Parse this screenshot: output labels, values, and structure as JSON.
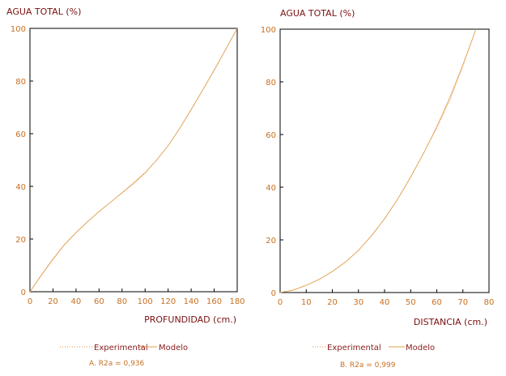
{
  "chart_data": [
    {
      "type": "line",
      "ylabel": "AGUA TOTAL (%)",
      "xlabel": "PROFUNDIDAD (cm.)",
      "xlim": [
        0,
        180
      ],
      "ylim": [
        0,
        100
      ],
      "xticks": [
        0,
        20,
        40,
        60,
        80,
        100,
        120,
        140,
        160,
        180
      ],
      "yticks": [
        0,
        20,
        40,
        60,
        80,
        100
      ],
      "series": [
        {
          "name": "Experimental",
          "x": [
            0,
            10,
            20,
            30,
            40,
            50,
            60,
            70,
            80,
            90,
            100,
            110,
            120,
            130,
            140,
            150,
            160,
            170,
            180
          ],
          "y": [
            0,
            6.5,
            12.5,
            18,
            22.5,
            26.5,
            30.5,
            34,
            37.5,
            41,
            45,
            50,
            55.5,
            62,
            69,
            76.5,
            84,
            92,
            100
          ]
        },
        {
          "name": "Modelo",
          "x": [
            0,
            10,
            20,
            30,
            40,
            50,
            60,
            70,
            80,
            90,
            100,
            110,
            120,
            130,
            140,
            150,
            160,
            170,
            180
          ],
          "y": [
            0,
            6.3,
            12.3,
            17.8,
            22.4,
            26.6,
            30.4,
            34,
            37.6,
            41.3,
            45.2,
            50,
            55.4,
            62,
            69.2,
            76.6,
            84.2,
            92,
            100
          ]
        }
      ],
      "legend": [
        "Experimental",
        "Modelo"
      ],
      "legend_position": "bottom",
      "caption": "A.   R2a = 0,936"
    },
    {
      "type": "line",
      "ylabel": "AGUA TOTAL (%)",
      "xlabel": "DISTANCIA (cm.)",
      "xlim": [
        0,
        80
      ],
      "ylim": [
        0,
        100
      ],
      "xticks": [
        0,
        10,
        20,
        30,
        40,
        50,
        60,
        70,
        80
      ],
      "yticks": [
        0,
        20,
        40,
        60,
        80,
        100
      ],
      "series": [
        {
          "name": "Experimental",
          "x": [
            0,
            5,
            10,
            15,
            20,
            25,
            30,
            35,
            40,
            45,
            50,
            55,
            60,
            65,
            70,
            75
          ],
          "y": [
            0,
            1,
            2.8,
            5,
            8,
            11.5,
            16,
            21.5,
            28,
            35.5,
            44,
            53,
            62.5,
            73,
            86,
            100
          ]
        },
        {
          "name": "Modelo",
          "x": [
            0,
            5,
            10,
            15,
            20,
            25,
            30,
            35,
            40,
            45,
            50,
            55,
            60,
            65,
            70,
            75
          ],
          "y": [
            0,
            0.9,
            2.7,
            5,
            8,
            11.6,
            16,
            21.6,
            28,
            35.4,
            43.8,
            53,
            63,
            74,
            86.5,
            100
          ]
        }
      ],
      "legend": [
        "Experimental",
        "Modelo"
      ],
      "legend_position": "bottom",
      "caption": "B.   R2a = 0,999"
    }
  ],
  "colors": {
    "axis": "#000000",
    "tick_label": "#c87020",
    "experimental": "#e09040",
    "modelo": "#e0a050",
    "title": "#7a1010"
  }
}
